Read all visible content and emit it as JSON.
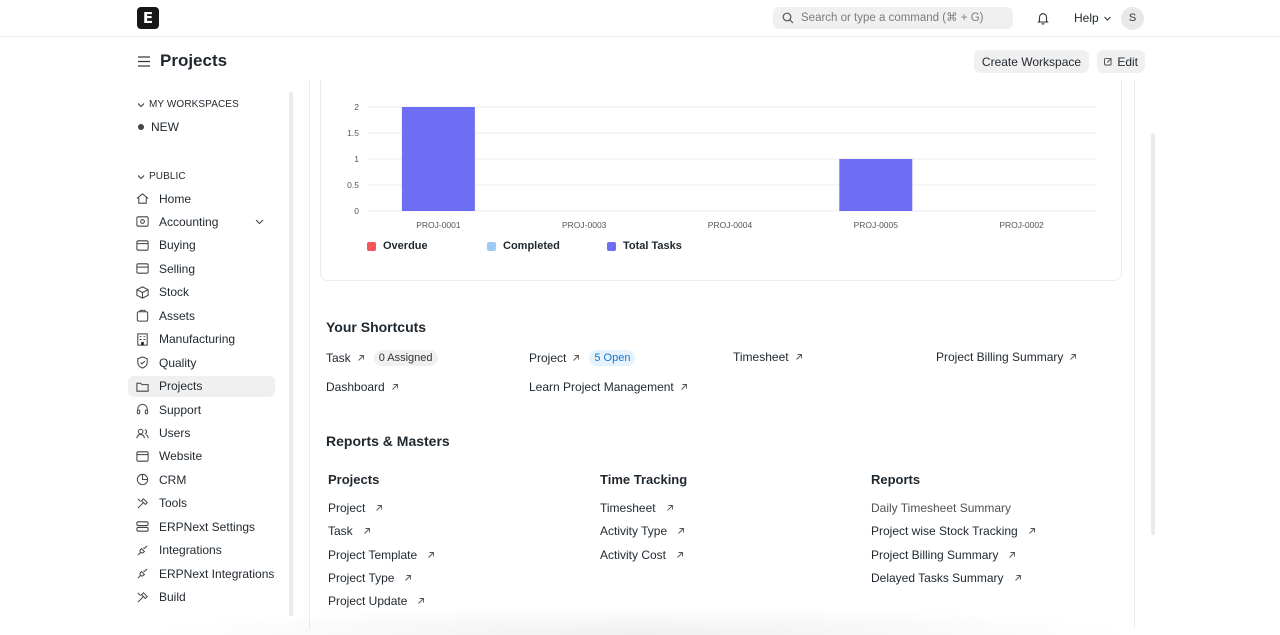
{
  "navbar": {
    "logo": "E",
    "search_placeholder": "Search or type a command (⌘ + G)",
    "help_label": "Help",
    "avatar_initial": "S"
  },
  "page": {
    "title": "Projects",
    "create_workspace_label": "Create Workspace",
    "edit_label": "Edit"
  },
  "sidebar": {
    "my_workspaces_label": "MY WORKSPACES",
    "workspaces": [
      "NEW"
    ],
    "public_label": "PUBLIC",
    "items": [
      {
        "label": "Home",
        "icon": "home-icon"
      },
      {
        "label": "Accounting",
        "icon": "accounting-icon"
      },
      {
        "label": "Buying",
        "icon": "buying-icon"
      },
      {
        "label": "Selling",
        "icon": "selling-icon"
      },
      {
        "label": "Stock",
        "icon": "stock-icon"
      },
      {
        "label": "Assets",
        "icon": "assets-icon"
      },
      {
        "label": "Manufacturing",
        "icon": "manufacturing-icon"
      },
      {
        "label": "Quality",
        "icon": "quality-icon"
      },
      {
        "label": "Projects",
        "icon": "projects-icon"
      },
      {
        "label": "Support",
        "icon": "support-icon"
      },
      {
        "label": "Users",
        "icon": "users-icon"
      },
      {
        "label": "Website",
        "icon": "website-icon"
      },
      {
        "label": "CRM",
        "icon": "crm-icon"
      },
      {
        "label": "Tools",
        "icon": "tools-icon"
      },
      {
        "label": "ERPNext Settings",
        "icon": "settings-icon"
      },
      {
        "label": "Integrations",
        "icon": "integrations-icon"
      },
      {
        "label": "ERPNext Integrations",
        "icon": "integrations-icon"
      },
      {
        "label": "Build",
        "icon": "build-icon"
      }
    ],
    "active_item": "Projects"
  },
  "chart_data": {
    "type": "bar",
    "categories": [
      "PROJ-0001",
      "PROJ-0003",
      "PROJ-0004",
      "PROJ-0005",
      "PROJ-0002"
    ],
    "series": [
      {
        "name": "Overdue",
        "color": "#f2545b",
        "values": [
          0,
          0,
          0,
          0,
          0
        ]
      },
      {
        "name": "Completed",
        "color": "#9ecbf4",
        "values": [
          0,
          0,
          0,
          0,
          0
        ]
      },
      {
        "name": "Total Tasks",
        "color": "#6e6ef5",
        "values": [
          2,
          0,
          0,
          1,
          0
        ]
      }
    ],
    "y_ticks": [
      "2",
      "1.5",
      "1",
      "0.5",
      "0"
    ],
    "ylim": [
      0,
      2
    ],
    "grid": true,
    "legend": "bottom-left"
  },
  "shortcuts": {
    "title": "Your Shortcuts",
    "items": [
      {
        "label": "Task",
        "badge": "0 Assigned"
      },
      {
        "label": "Project",
        "badge": "5 Open"
      },
      {
        "label": "Timesheet"
      },
      {
        "label": "Project Billing Summary"
      },
      {
        "label": "Dashboard"
      },
      {
        "label": "Learn Project Management"
      }
    ]
  },
  "reports": {
    "title": "Reports & Masters",
    "columns": [
      {
        "title": "Projects",
        "links": [
          "Project",
          "Task",
          "Project Template",
          "Project Type",
          "Project Update"
        ]
      },
      {
        "title": "Time Tracking",
        "links": [
          "Timesheet",
          "Activity Type",
          "Activity Cost"
        ]
      },
      {
        "title": "Reports",
        "links": [
          "Daily Timesheet Summary",
          "Project wise Stock Tracking",
          "Project Billing Summary",
          "Delayed Tasks Summary"
        ]
      }
    ]
  }
}
